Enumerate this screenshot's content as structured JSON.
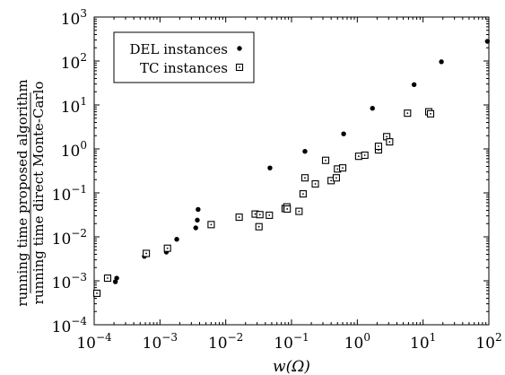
{
  "chart_data": {
    "type": "scatter",
    "x_scale": "log",
    "y_scale": "log",
    "xlim": [
      0.0001,
      100
    ],
    "ylim": [
      0.0001,
      1000
    ],
    "x_ticks": [
      {
        "base": "10",
        "exp": "−4"
      },
      {
        "base": "10",
        "exp": "−3"
      },
      {
        "base": "10",
        "exp": "−2"
      },
      {
        "base": "10",
        "exp": "−1"
      },
      {
        "base": "10",
        "exp": "0"
      },
      {
        "base": "10",
        "exp": "1"
      },
      {
        "base": "10",
        "exp": "2"
      }
    ],
    "y_ticks": [
      {
        "base": "10",
        "exp": "−4"
      },
      {
        "base": "10",
        "exp": "−3"
      },
      {
        "base": "10",
        "exp": "−2"
      },
      {
        "base": "10",
        "exp": "−1"
      },
      {
        "base": "10",
        "exp": "0"
      },
      {
        "base": "10",
        "exp": "1"
      },
      {
        "base": "10",
        "exp": "2"
      },
      {
        "base": "10",
        "exp": "3"
      }
    ],
    "xlabel": "w(Ω)",
    "ylabel_numerator": "running time proposed algorithm",
    "ylabel_denominator": "running time direct Monte-Carlo",
    "legend_position": "top-left",
    "grid": false,
    "series": [
      {
        "name": "DEL instances",
        "marker": "filled-circle",
        "color": "#000000",
        "points": [
          [
            0.00021,
            0.00095
          ],
          [
            0.00022,
            0.00115
          ],
          [
            0.00058,
            0.0036
          ],
          [
            0.00125,
            0.0045
          ],
          [
            0.0018,
            0.0088
          ],
          [
            0.0035,
            0.016
          ],
          [
            0.0037,
            0.024
          ],
          [
            0.0038,
            0.042
          ],
          [
            0.047,
            0.37
          ],
          [
            0.16,
            0.88
          ],
          [
            0.62,
            2.2
          ],
          [
            1.7,
            8.4
          ],
          [
            7.3,
            29
          ],
          [
            19,
            96
          ],
          [
            95,
            280
          ]
        ]
      },
      {
        "name": "TC instances",
        "marker": "dotted-square",
        "color": "#000000",
        "points": [
          [
            0.00011,
            0.00052
          ],
          [
            0.00016,
            0.00115
          ],
          [
            0.00062,
            0.0042
          ],
          [
            0.0013,
            0.0055
          ],
          [
            0.006,
            0.019
          ],
          [
            0.016,
            0.028
          ],
          [
            0.028,
            0.033
          ],
          [
            0.033,
            0.032
          ],
          [
            0.032,
            0.017
          ],
          [
            0.046,
            0.031
          ],
          [
            0.08,
            0.044
          ],
          [
            0.085,
            0.048
          ],
          [
            0.086,
            0.043
          ],
          [
            0.13,
            0.038
          ],
          [
            0.15,
            0.095
          ],
          [
            0.16,
            0.22
          ],
          [
            0.23,
            0.16
          ],
          [
            0.33,
            0.55
          ],
          [
            0.4,
            0.19
          ],
          [
            0.48,
            0.22
          ],
          [
            0.5,
            0.35
          ],
          [
            0.6,
            0.37
          ],
          [
            1.05,
            0.68
          ],
          [
            1.3,
            0.72
          ],
          [
            2.1,
            0.95
          ],
          [
            2.1,
            1.15
          ],
          [
            2.8,
            1.9
          ],
          [
            3.1,
            1.45
          ],
          [
            5.8,
            6.5
          ],
          [
            12.2,
            7.0
          ],
          [
            13,
            6.3
          ]
        ]
      }
    ]
  }
}
